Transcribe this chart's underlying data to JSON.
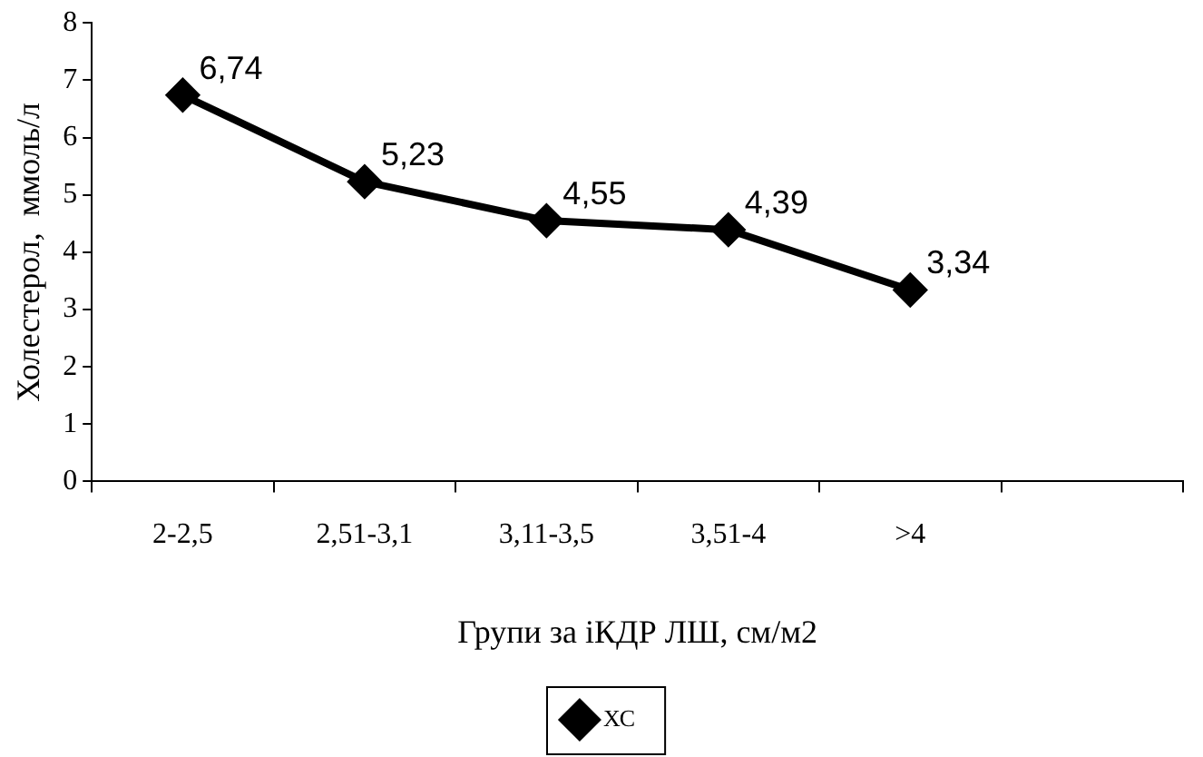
{
  "chart_data": {
    "type": "line",
    "xlabel": "Групи за іКДР ЛШ, см/м2",
    "ylabel": "Холестерол,  ммоль/л",
    "categories": [
      "2-2,5",
      "2,51-3,1",
      "3,11-3,5",
      "3,51-4",
      ">4",
      null
    ],
    "series": [
      {
        "name": "ХС",
        "color": "#000000",
        "values": [
          6.74,
          5.23,
          4.55,
          4.39,
          3.34,
          null
        ],
        "value_labels": [
          "6,74",
          "5,23",
          "4,55",
          "4,39",
          "3,34",
          null
        ]
      }
    ],
    "ylim": [
      0,
      8
    ],
    "yticks": [
      0,
      1,
      2,
      3,
      4,
      5,
      6,
      7,
      8
    ],
    "grid": false,
    "legend": "bottom",
    "marker": "diamond",
    "line_style": "solid"
  }
}
